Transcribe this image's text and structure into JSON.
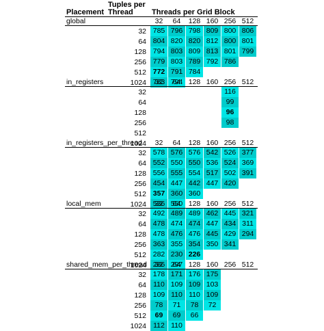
{
  "header": {
    "placement": "Placement",
    "tuples_line1": "Tuples per",
    "tuples_line2": "Thread",
    "threads": "Threads per Grid Block"
  },
  "columns": [
    "32",
    "64",
    "128",
    "160",
    "256",
    "512"
  ],
  "rows": [
    "32",
    "64",
    "128",
    "256",
    "512",
    "1024"
  ],
  "colors": {
    "cell_light": "#00e5e5",
    "cell_dark": "#00cccc",
    "text": "#000000",
    "rule": "#000000"
  },
  "sections": [
    {
      "name": "global",
      "cells": [
        [
          785,
          796,
          798,
          809,
          800,
          806
        ],
        [
          804,
          820,
          820,
          812,
          800,
          801
        ],
        [
          794,
          803,
          809,
          813,
          801,
          799
        ],
        [
          779,
          803,
          789,
          792,
          786,
          null
        ],
        [
          772,
          791,
          784,
          null,
          null,
          null
        ],
        [
          783,
          794,
          null,
          null,
          null,
          null
        ]
      ],
      "bold": [
        [
          4,
          0
        ]
      ]
    },
    {
      "name": "in_registers",
      "cells": [
        [
          null,
          null,
          null,
          null,
          116,
          null
        ],
        [
          null,
          null,
          null,
          null,
          99,
          null
        ],
        [
          null,
          null,
          null,
          null,
          96,
          null
        ],
        [
          null,
          null,
          null,
          null,
          98,
          null
        ],
        [
          null,
          null,
          null,
          null,
          null,
          null
        ],
        [
          null,
          null,
          null,
          null,
          null,
          null
        ]
      ],
      "bold": [
        [
          2,
          4
        ]
      ]
    },
    {
      "name": "in_registers_per_thread",
      "cells": [
        [
          578,
          576,
          576,
          542,
          526,
          377
        ],
        [
          552,
          550,
          550,
          536,
          524,
          369
        ],
        [
          556,
          555,
          554,
          517,
          502,
          391
        ],
        [
          454,
          447,
          442,
          447,
          420,
          null
        ],
        [
          357,
          360,
          360,
          null,
          null,
          null
        ],
        [
          536,
          550,
          null,
          null,
          null,
          null
        ]
      ],
      "bold": [
        [
          4,
          0
        ]
      ]
    },
    {
      "name": "local_mem",
      "cells": [
        [
          492,
          489,
          489,
          462,
          445,
          321
        ],
        [
          478,
          474,
          474,
          447,
          434,
          311
        ],
        [
          478,
          476,
          476,
          445,
          429,
          294
        ],
        [
          363,
          355,
          354,
          350,
          341,
          null
        ],
        [
          282,
          230,
          226,
          null,
          null,
          null
        ],
        [
          286,
          297,
          null,
          null,
          null,
          null
        ]
      ],
      "bold": [
        [
          4,
          2
        ]
      ]
    },
    {
      "name": "shared_mem_per_thread",
      "cells": [
        [
          178,
          171,
          176,
          175,
          null,
          null
        ],
        [
          110,
          109,
          109,
          103,
          null,
          null
        ],
        [
          109,
          110,
          110,
          109,
          null,
          null
        ],
        [
          78,
          71,
          78,
          72,
          null,
          null
        ],
        [
          69,
          69,
          66,
          null,
          null,
          null
        ],
        [
          112,
          110,
          null,
          null,
          null,
          null
        ]
      ],
      "bold": [
        [
          4,
          0
        ]
      ]
    }
  ]
}
